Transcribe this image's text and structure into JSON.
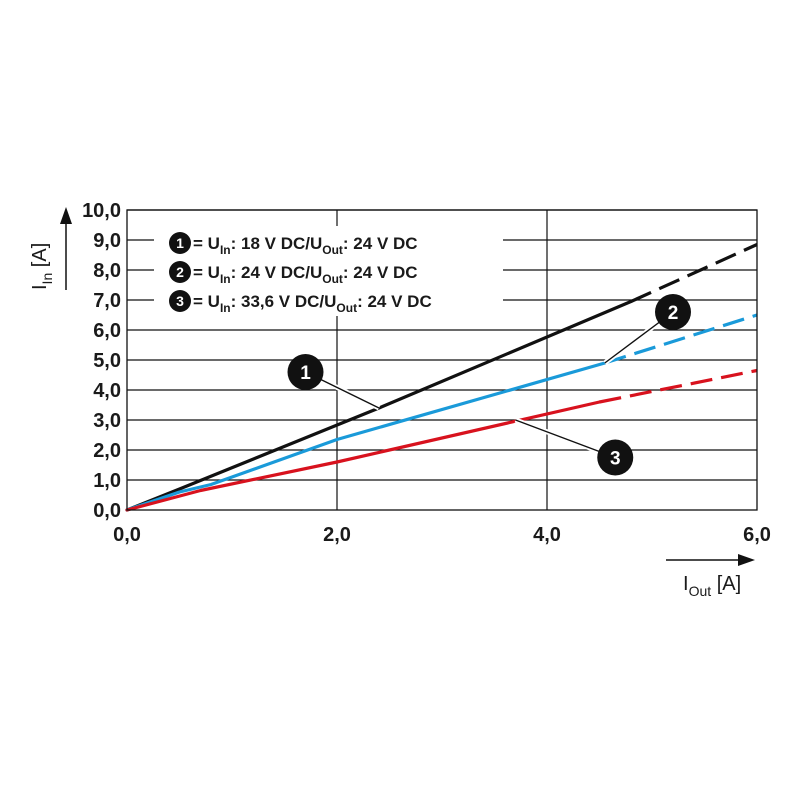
{
  "chart_data": {
    "type": "line",
    "xlim": [
      0,
      6
    ],
    "ylim": [
      0,
      10
    ],
    "x_ticks": [
      "0,0",
      "2,0",
      "4,0",
      "6,0"
    ],
    "y_ticks": [
      "0,0",
      "1,0",
      "2,0",
      "3,0",
      "4,0",
      "5,0",
      "6,0",
      "7,0",
      "8,0",
      "9,0",
      "10,0"
    ],
    "grid": true,
    "xlabel": {
      "main": "I",
      "sub": "Out",
      "unit": " [A]"
    },
    "ylabel": {
      "main": "I",
      "sub": "In",
      "unit": " [A]"
    },
    "legend_placement": "top-left",
    "series": [
      {
        "marker": "1",
        "color": "#111111",
        "legend": {
          "a": " = U",
          "b": "In",
          "c": ": 18 V DC/U",
          "d": "Out",
          "e": ": 24 V DC"
        },
        "solid": [
          [
            0,
            0
          ],
          [
            0.5,
            0.7
          ],
          [
            2.4,
            3.4
          ],
          [
            4.8,
            6.95
          ]
        ],
        "dashed": [
          [
            4.8,
            6.95
          ],
          [
            6.0,
            8.85
          ]
        ]
      },
      {
        "marker": "2",
        "color": "#1a9ad9",
        "legend": {
          "a": " = U",
          "b": "In",
          "c": ": 24 V DC/U",
          "d": "Out",
          "e": ": 24 V DC"
        },
        "solid": [
          [
            0,
            0
          ],
          [
            0.5,
            0.6
          ],
          [
            0.8,
            0.85
          ],
          [
            2.0,
            2.35
          ],
          [
            4.55,
            4.9
          ]
        ],
        "dashed": [
          [
            4.55,
            4.9
          ],
          [
            6.0,
            6.5
          ]
        ]
      },
      {
        "marker": "3",
        "color": "#d8121e",
        "legend": {
          "a": " = U",
          "b": "In",
          "c": ": 33,6 V DC/U",
          "d": "Out",
          "e": ": 24 V DC"
        },
        "solid": [
          [
            0,
            0
          ],
          [
            0.7,
            0.65
          ],
          [
            2.0,
            1.6
          ],
          [
            4.5,
            3.6
          ]
        ],
        "dashed": [
          [
            4.5,
            3.6
          ],
          [
            6.0,
            4.65
          ]
        ]
      }
    ],
    "callouts": [
      {
        "label": "1",
        "anchor": [
          2.4,
          3.4
        ],
        "marker_at": [
          1.7,
          4.6
        ]
      },
      {
        "label": "2",
        "anchor": [
          4.55,
          4.9
        ],
        "marker_at": [
          5.2,
          6.6
        ]
      },
      {
        "label": "3",
        "anchor": [
          3.7,
          3.0
        ],
        "marker_at": [
          4.65,
          1.75
        ]
      }
    ]
  }
}
